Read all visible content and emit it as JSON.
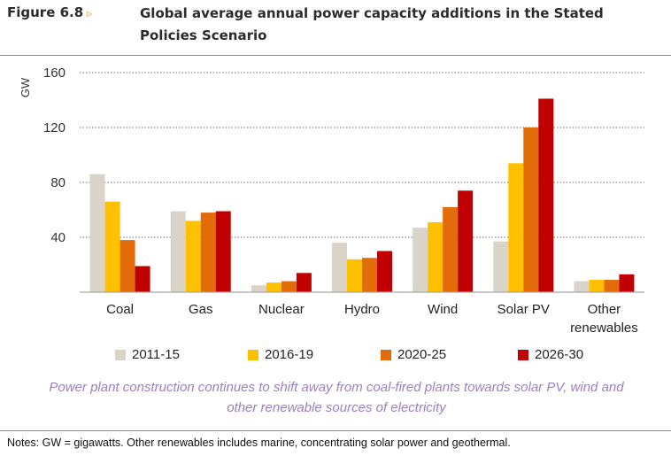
{
  "figure": {
    "label": "Figure 6.8",
    "arrow": "▹",
    "title": "Global average annual power capacity additions in the Stated Policies Scenario"
  },
  "caption": "Power plant construction continues to shift away from coal-fired plants towards solar PV, wind and other renewable sources of electricity",
  "notes": "Notes: GW = gigawatts. Other renewables includes marine, concentrating solar power and geothermal.",
  "chart_data": {
    "type": "bar",
    "title": "Global average annual power capacity additions in the Stated Policies Scenario",
    "xlabel": "",
    "ylabel": "GW",
    "ylim": [
      0,
      160
    ],
    "yticks": [
      40,
      80,
      120,
      160
    ],
    "grid": true,
    "legend_position": "bottom",
    "categories": [
      "Coal",
      "Gas",
      "Nuclear",
      "Hydro",
      "Wind",
      "Solar PV",
      "Other renewables"
    ],
    "category_lines": [
      [
        "Coal"
      ],
      [
        "Gas"
      ],
      [
        "Nuclear"
      ],
      [
        "Hydro"
      ],
      [
        "Wind"
      ],
      [
        "Solar PV"
      ],
      [
        "Other",
        "renewables"
      ]
    ],
    "series": [
      {
        "name": "2011-15",
        "color": "#d9d4c7",
        "values": [
          86,
          59,
          5,
          36,
          47,
          37,
          8
        ]
      },
      {
        "name": "2016-19",
        "color": "#ffc000",
        "values": [
          66,
          52,
          7,
          24,
          51,
          94,
          9
        ]
      },
      {
        "name": "2020-25",
        "color": "#e36c0a",
        "values": [
          38,
          58,
          8,
          25,
          62,
          120,
          9
        ]
      },
      {
        "name": "2026-30",
        "color": "#c00000",
        "values": [
          19,
          59,
          14,
          30,
          74,
          141,
          13
        ]
      }
    ]
  }
}
